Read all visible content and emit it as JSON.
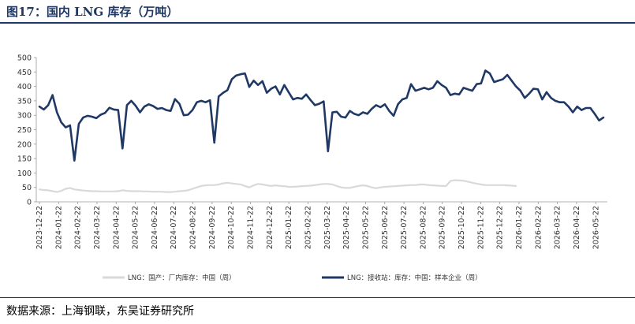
{
  "title": "图17：国内 LNG 库存（万吨）",
  "source": "数据来源：上海钢联，东吴证券研究所",
  "chart_data": {
    "type": "line",
    "title": "图17：国内 LNG 库存（万吨）",
    "ylim": [
      0,
      500
    ],
    "yticks": [
      0,
      50,
      100,
      150,
      200,
      250,
      300,
      350,
      400,
      450,
      500
    ],
    "xlabel": "",
    "ylabel": "",
    "x_tick_labels": [
      "2023-12-22",
      "2024-01-22",
      "2024-02-22",
      "2024-03-22",
      "2024-04-22",
      "2024-05-22",
      "2024-06-22",
      "2024-07-22",
      "2024-08-22",
      "2024-09-22",
      "2024-10-22",
      "2024-11-22",
      "2024-12-22",
      "2025-01-22",
      "2025-02-22",
      "2025-03-22",
      "2025-04-22",
      "2025-05-22",
      "2025-06-22",
      "2025-07-22",
      "2025-08-22",
      "2025-09-22",
      "2025-10-22",
      "2025-11-22",
      "2025-12-22",
      "2026-01-22",
      "2026-02-22",
      "2026-03-22",
      "2026-04-22",
      "2026-05-22"
    ],
    "grid": false,
    "legend_position": "bottom",
    "series": [
      {
        "name": "LNG：国产：厂内库存：中国（周）",
        "color": "#d9d9d9",
        "points": [
          [
            0,
            43
          ],
          [
            1,
            41
          ],
          [
            2,
            40
          ],
          [
            3,
            37
          ],
          [
            4,
            34
          ],
          [
            5,
            38
          ],
          [
            6,
            45
          ],
          [
            7,
            48
          ],
          [
            8,
            43
          ],
          [
            9,
            41
          ],
          [
            10,
            39
          ],
          [
            11,
            38
          ],
          [
            12,
            37
          ],
          [
            13,
            37
          ],
          [
            14,
            36
          ],
          [
            15,
            36
          ],
          [
            16,
            36
          ],
          [
            17,
            36
          ],
          [
            18,
            37
          ],
          [
            19,
            40
          ],
          [
            20,
            38
          ],
          [
            21,
            37
          ],
          [
            22,
            37
          ],
          [
            23,
            37
          ],
          [
            24,
            36
          ],
          [
            25,
            36
          ],
          [
            26,
            35
          ],
          [
            27,
            35
          ],
          [
            28,
            35
          ],
          [
            29,
            34
          ],
          [
            30,
            34
          ],
          [
            31,
            35
          ],
          [
            32,
            37
          ],
          [
            33,
            38
          ],
          [
            34,
            40
          ],
          [
            35,
            45
          ],
          [
            36,
            50
          ],
          [
            37,
            55
          ],
          [
            38,
            57
          ],
          [
            39,
            58
          ],
          [
            40,
            58
          ],
          [
            41,
            60
          ],
          [
            42,
            64
          ],
          [
            43,
            66
          ],
          [
            44,
            64
          ],
          [
            45,
            62
          ],
          [
            46,
            60
          ],
          [
            47,
            55
          ],
          [
            48,
            50
          ],
          [
            49,
            57
          ],
          [
            50,
            62
          ],
          [
            51,
            60
          ],
          [
            52,
            57
          ],
          [
            53,
            55
          ],
          [
            54,
            57
          ],
          [
            55,
            55
          ],
          [
            56,
            54
          ],
          [
            57,
            52
          ],
          [
            58,
            52
          ],
          [
            59,
            53
          ],
          [
            60,
            54
          ],
          [
            61,
            55
          ],
          [
            62,
            56
          ],
          [
            63,
            58
          ],
          [
            64,
            60
          ],
          [
            65,
            62
          ],
          [
            66,
            62
          ],
          [
            67,
            60
          ],
          [
            68,
            55
          ],
          [
            69,
            50
          ],
          [
            70,
            48
          ],
          [
            71,
            48
          ],
          [
            72,
            52
          ],
          [
            73,
            55
          ],
          [
            74,
            57
          ],
          [
            75,
            55
          ],
          [
            76,
            50
          ],
          [
            77,
            47
          ],
          [
            78,
            50
          ],
          [
            79,
            52
          ],
          [
            80,
            53
          ],
          [
            81,
            54
          ],
          [
            82,
            55
          ],
          [
            83,
            56
          ],
          [
            84,
            57
          ],
          [
            85,
            58
          ],
          [
            86,
            58
          ],
          [
            87,
            60
          ],
          [
            88,
            60
          ],
          [
            89,
            58
          ],
          [
            90,
            57
          ],
          [
            91,
            56
          ],
          [
            92,
            55
          ],
          [
            93,
            55
          ],
          [
            94,
            72
          ],
          [
            95,
            75
          ],
          [
            96,
            74
          ],
          [
            97,
            73
          ],
          [
            98,
            70
          ],
          [
            99,
            66
          ],
          [
            100,
            63
          ],
          [
            101,
            60
          ],
          [
            102,
            58
          ],
          [
            103,
            58
          ],
          [
            104,
            58
          ],
          [
            105,
            58
          ],
          [
            106,
            58
          ],
          [
            107,
            57
          ],
          [
            108,
            56
          ],
          [
            109,
            55
          ]
        ]
      },
      {
        "name": "LNG：接收站：库存：中国：样本企业（周）",
        "color": "#1f3864",
        "points": [
          [
            0,
            330
          ],
          [
            1,
            320
          ],
          [
            2,
            335
          ],
          [
            3,
            370
          ],
          [
            4,
            310
          ],
          [
            5,
            275
          ],
          [
            6,
            258
          ],
          [
            7,
            265
          ],
          [
            8,
            143
          ],
          [
            9,
            270
          ],
          [
            10,
            292
          ],
          [
            11,
            298
          ],
          [
            12,
            295
          ],
          [
            13,
            290
          ],
          [
            14,
            302
          ],
          [
            15,
            308
          ],
          [
            16,
            326
          ],
          [
            17,
            320
          ],
          [
            18,
            318
          ],
          [
            19,
            185
          ],
          [
            20,
            335
          ],
          [
            21,
            350
          ],
          [
            22,
            333
          ],
          [
            23,
            310
          ],
          [
            24,
            330
          ],
          [
            25,
            338
          ],
          [
            26,
            332
          ],
          [
            27,
            322
          ],
          [
            28,
            325
          ],
          [
            29,
            318
          ],
          [
            30,
            315
          ],
          [
            31,
            356
          ],
          [
            32,
            340
          ],
          [
            33,
            300
          ],
          [
            34,
            302
          ],
          [
            35,
            318
          ],
          [
            36,
            345
          ],
          [
            37,
            350
          ],
          [
            38,
            345
          ],
          [
            39,
            352
          ],
          [
            40,
            205
          ],
          [
            41,
            365
          ],
          [
            42,
            378
          ],
          [
            43,
            387
          ],
          [
            44,
            425
          ],
          [
            45,
            438
          ],
          [
            46,
            442
          ],
          [
            47,
            445
          ],
          [
            48,
            398
          ],
          [
            49,
            420
          ],
          [
            50,
            405
          ],
          [
            51,
            418
          ],
          [
            52,
            378
          ],
          [
            53,
            392
          ],
          [
            54,
            400
          ],
          [
            55,
            372
          ],
          [
            56,
            405
          ],
          [
            57,
            380
          ],
          [
            58,
            355
          ],
          [
            59,
            360
          ],
          [
            60,
            357
          ],
          [
            61,
            372
          ],
          [
            62,
            353
          ],
          [
            63,
            335
          ],
          [
            64,
            340
          ],
          [
            65,
            348
          ],
          [
            66,
            175
          ],
          [
            67,
            310
          ],
          [
            68,
            312
          ],
          [
            69,
            295
          ],
          [
            70,
            292
          ],
          [
            71,
            315
          ],
          [
            72,
            305
          ],
          [
            73,
            300
          ],
          [
            74,
            310
          ],
          [
            75,
            305
          ],
          [
            76,
            322
          ],
          [
            77,
            335
          ],
          [
            78,
            328
          ],
          [
            79,
            338
          ],
          [
            80,
            315
          ],
          [
            81,
            298
          ],
          [
            82,
            338
          ],
          [
            83,
            355
          ],
          [
            84,
            360
          ],
          [
            85,
            408
          ],
          [
            86,
            385
          ],
          [
            87,
            390
          ],
          [
            88,
            395
          ],
          [
            89,
            390
          ],
          [
            90,
            395
          ],
          [
            91,
            418
          ],
          [
            92,
            405
          ],
          [
            93,
            395
          ],
          [
            94,
            370
          ],
          [
            95,
            375
          ],
          [
            96,
            372
          ],
          [
            97,
            395
          ],
          [
            98,
            390
          ],
          [
            99,
            385
          ],
          [
            100,
            408
          ],
          [
            101,
            410
          ],
          [
            102,
            455
          ],
          [
            103,
            445
          ],
          [
            104,
            415
          ],
          [
            105,
            420
          ],
          [
            106,
            425
          ],
          [
            107,
            440
          ],
          [
            108,
            420
          ],
          [
            109,
            400
          ],
          [
            110,
            385
          ],
          [
            111,
            360
          ],
          [
            112,
            375
          ],
          [
            113,
            392
          ],
          [
            114,
            390
          ],
          [
            115,
            355
          ],
          [
            116,
            380
          ],
          [
            117,
            360
          ],
          [
            118,
            350
          ],
          [
            119,
            345
          ],
          [
            120,
            345
          ],
          [
            121,
            330
          ],
          [
            122,
            310
          ],
          [
            123,
            330
          ],
          [
            124,
            318
          ],
          [
            125,
            325
          ],
          [
            126,
            325
          ],
          [
            127,
            305
          ],
          [
            128,
            282
          ],
          [
            129,
            292
          ]
        ]
      }
    ]
  }
}
